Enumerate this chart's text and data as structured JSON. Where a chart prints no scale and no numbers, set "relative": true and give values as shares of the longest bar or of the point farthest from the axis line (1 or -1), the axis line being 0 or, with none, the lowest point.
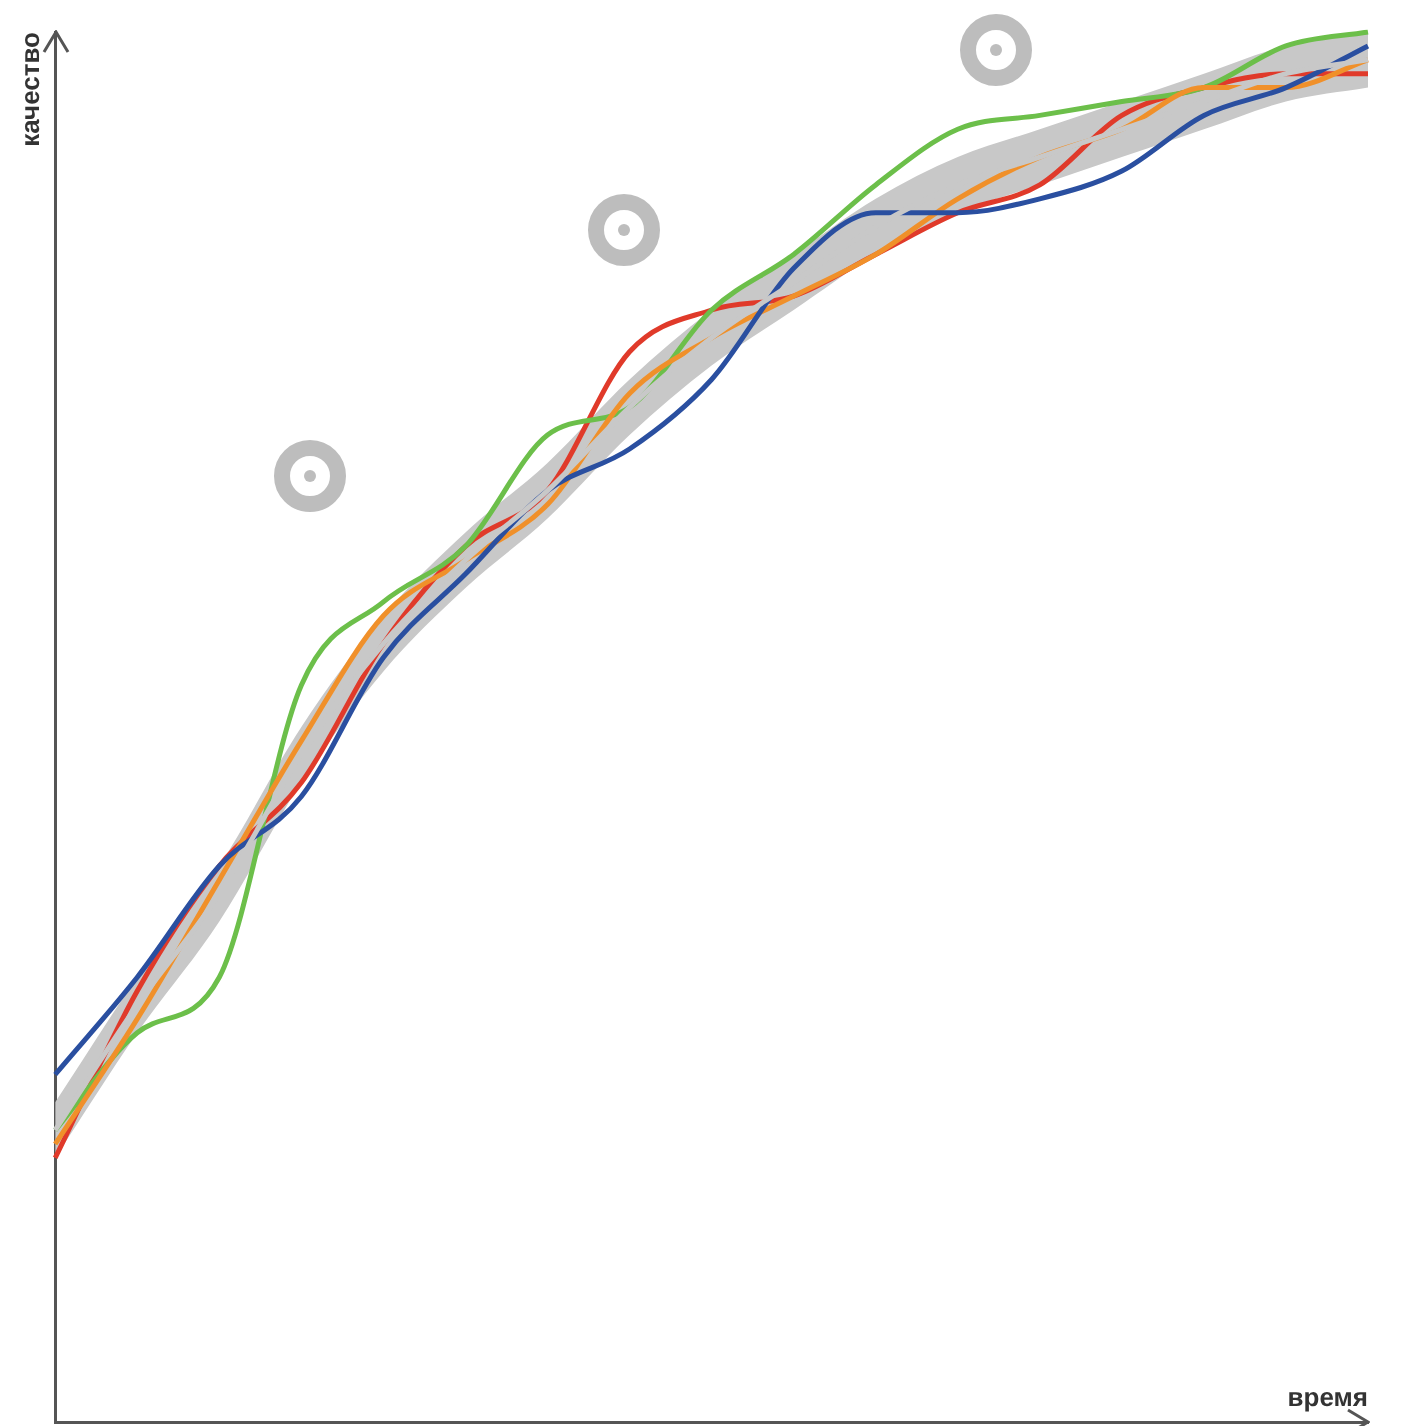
{
  "chart_data": {
    "type": "line",
    "relative": true,
    "xlabel": "время",
    "ylabel": "качество",
    "grid": false,
    "legend": false,
    "tick_labels": false,
    "marker": "none",
    "line_style": "solid",
    "categories": [
      null,
      null,
      null,
      null,
      null,
      null,
      null,
      null,
      null,
      null,
      null,
      null,
      null,
      null,
      null,
      null,
      null
    ],
    "series": [
      {
        "color": "#c8c8c8",
        "values": [
          0.21,
          0.3,
          0.38,
          0.48,
          0.56,
          0.62,
          0.67,
          0.73,
          0.78,
          0.82,
          0.86,
          0.89,
          0.91,
          0.93,
          0.95,
          0.97,
          0.98
        ],
        "lower": [
          0.19,
          0.28,
          0.36,
          0.46,
          0.54,
          0.6,
          0.65,
          0.71,
          0.76,
          0.8,
          0.84,
          0.87,
          0.89,
          0.91,
          0.93,
          0.95,
          0.96
        ],
        "upper": [
          0.23,
          0.32,
          0.4,
          0.5,
          0.58,
          0.64,
          0.69,
          0.75,
          0.8,
          0.84,
          0.88,
          0.91,
          0.93,
          0.95,
          0.97,
          0.99,
          1.0
        ]
      },
      {
        "color": "#2a4fa0",
        "values": [
          0.25,
          0.32,
          0.4,
          0.45,
          0.55,
          0.61,
          0.67,
          0.7,
          0.75,
          0.83,
          0.87,
          0.87,
          0.88,
          0.9,
          0.94,
          0.96,
          0.99
        ]
      },
      {
        "color": "#f0902a",
        "values": [
          0.2,
          0.29,
          0.39,
          0.49,
          0.58,
          0.62,
          0.66,
          0.74,
          0.78,
          0.81,
          0.84,
          0.88,
          0.91,
          0.93,
          0.96,
          0.96,
          0.98
        ]
      },
      {
        "color": "#6cbf4a",
        "values": [
          0.21,
          0.28,
          0.32,
          0.53,
          0.59,
          0.63,
          0.71,
          0.73,
          0.8,
          0.84,
          0.89,
          0.93,
          0.94,
          0.95,
          0.96,
          0.99,
          1.0
        ]
      },
      {
        "color": "#e03a2a",
        "values": [
          0.19,
          0.31,
          0.4,
          0.46,
          0.56,
          0.63,
          0.67,
          0.77,
          0.8,
          0.81,
          0.84,
          0.87,
          0.89,
          0.94,
          0.96,
          0.97,
          0.97
        ]
      }
    ]
  }
}
